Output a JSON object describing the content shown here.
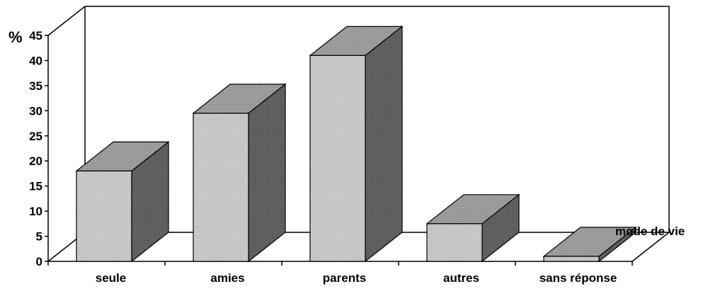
{
  "chart_data": {
    "type": "bar",
    "categories": [
      "seule",
      "amies",
      "parents",
      "autres",
      "sans réponse"
    ],
    "values": [
      18,
      29.5,
      41,
      7.5,
      1
    ],
    "ylabel": "%",
    "xlabel": "mode de vie",
    "ylim": [
      0,
      45
    ],
    "yticks": [
      0,
      5,
      10,
      15,
      20,
      25,
      30,
      35,
      40,
      45
    ],
    "grid": false,
    "legend": "none",
    "three_d": true,
    "colors": {
      "bar_front": "#c8c8c8",
      "bar_top": "#9a9a9a",
      "bar_side": "#5a5a5a",
      "outline": "#000000",
      "background": "#ffffff"
    }
  }
}
